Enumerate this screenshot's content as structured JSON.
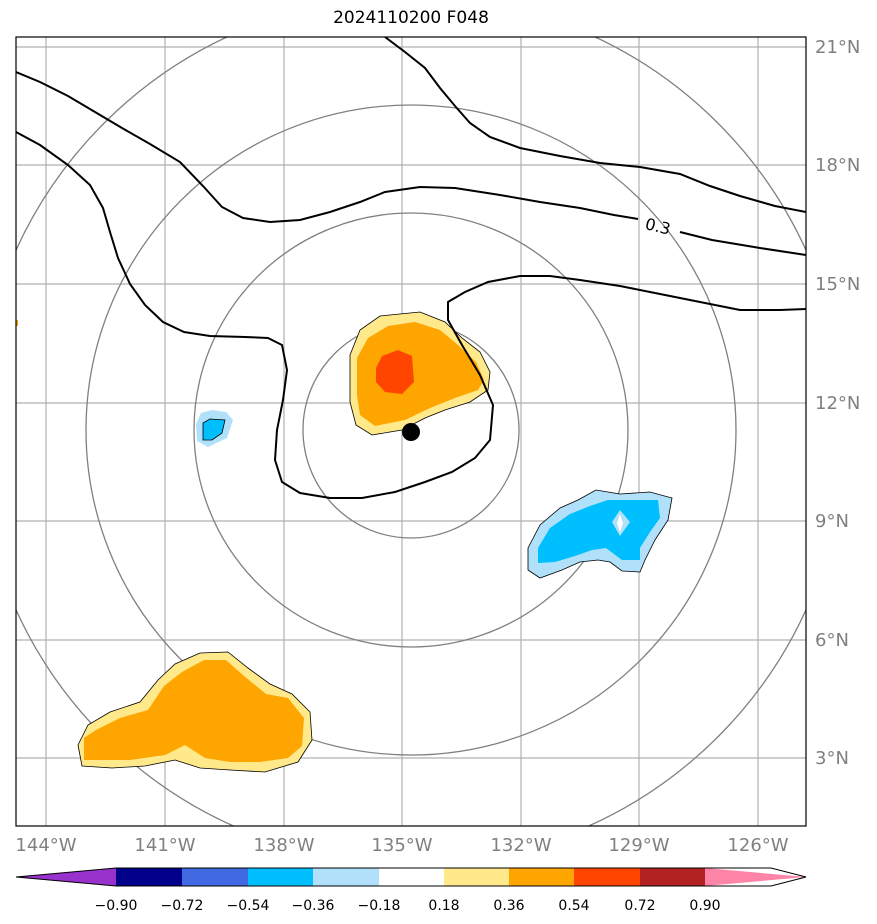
{
  "title": "2024110200 F048",
  "map": {
    "lon_ticks": [
      "144°W",
      "141°W",
      "138°W",
      "135°W",
      "132°W",
      "129°W",
      "126°W"
    ],
    "lat_ticks": [
      "21°N",
      "18°N",
      "15°N",
      "12°N",
      "9°N",
      "6°N",
      "3°N"
    ],
    "contour_label": "0.3",
    "center_marker": {
      "lon": -134.85,
      "lat": 11.2
    }
  },
  "colorbar": {
    "ticks": [
      "−0.90",
      "−0.72",
      "−0.54",
      "−0.36",
      "−0.18",
      "0.18",
      "0.36",
      "0.54",
      "0.72",
      "0.90"
    ],
    "colors": [
      "#9932cc",
      "#00008b",
      "#4169e1",
      "#00bfff",
      "#b0e0fa",
      "#ffffff",
      "#ffe98a",
      "#ffa500",
      "#ff4500",
      "#b22222",
      "#ff85a8"
    ]
  }
}
